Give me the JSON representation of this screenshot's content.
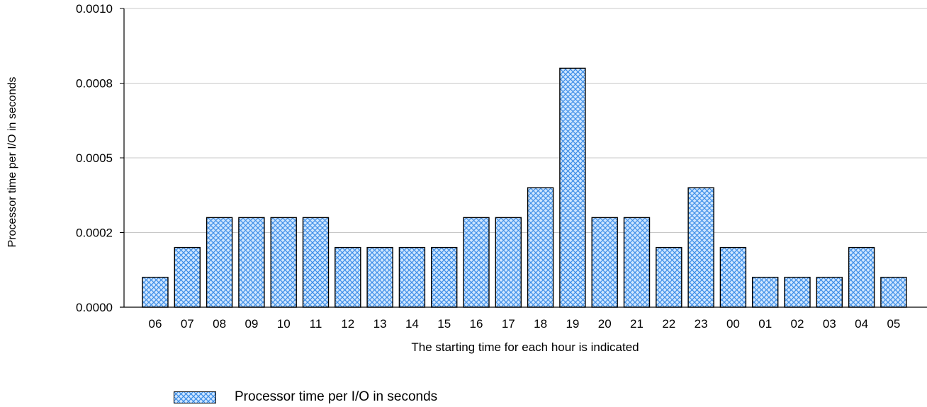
{
  "chart_data": {
    "type": "bar",
    "categories": [
      "06",
      "07",
      "08",
      "09",
      "10",
      "11",
      "12",
      "13",
      "14",
      "15",
      "16",
      "17",
      "18",
      "19",
      "20",
      "21",
      "22",
      "23",
      "00",
      "01",
      "02",
      "03",
      "04",
      "05"
    ],
    "series": [
      {
        "name": "Processor time per I/O in seconds",
        "values": [
          0.0001,
          0.0002,
          0.0003,
          0.0003,
          0.0003,
          0.0003,
          0.0002,
          0.0002,
          0.0002,
          0.0002,
          0.0003,
          0.0003,
          0.0004,
          0.0008,
          0.0003,
          0.0003,
          0.0002,
          0.0004,
          0.0002,
          0.0001,
          0.0001,
          0.0001,
          0.0002,
          0.0001
        ]
      }
    ],
    "y_ticks": [
      "0.0000",
      "0.0002",
      "0.0005",
      "0.0008",
      "0.0010"
    ],
    "xlabel": "The starting time for each hour is indicated",
    "ylabel": "Processor time per I/O in seconds",
    "ylim": [
      0,
      0.001
    ],
    "grid": true,
    "legend_position": "bottom",
    "colors": {
      "bar_fill": "#cfe6ff",
      "bar_hatch": "#3f8fe8",
      "bar_edge": "#000000",
      "grid": "#c8c8c8"
    }
  }
}
